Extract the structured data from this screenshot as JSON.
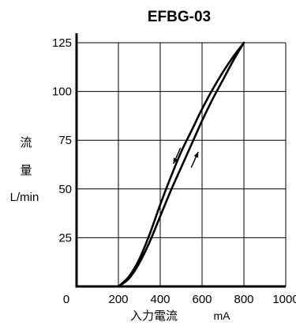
{
  "chart_data": {
    "type": "line",
    "title": "EFBG-03",
    "xlabel": "入力電流",
    "xunit": "mA",
    "ylabel_chars": [
      "流",
      "量"
    ],
    "yunit": "L/min",
    "xlim": [
      0,
      1000
    ],
    "ylim": [
      0,
      125
    ],
    "x_ticks": [
      0,
      200,
      400,
      600,
      800,
      1000
    ],
    "y_ticks": [
      25,
      50,
      75,
      100,
      125
    ],
    "grid": true,
    "series": [
      {
        "direction": "increasing",
        "points": [
          [
            200,
            0
          ],
          [
            250,
            4
          ],
          [
            300,
            12
          ],
          [
            350,
            23
          ],
          [
            400,
            36
          ],
          [
            450,
            49
          ],
          [
            500,
            61
          ],
          [
            550,
            73
          ],
          [
            600,
            85
          ],
          [
            650,
            96
          ],
          [
            700,
            106
          ],
          [
            750,
            116
          ],
          [
            800,
            125
          ]
        ]
      },
      {
        "direction": "decreasing",
        "points": [
          [
            800,
            125
          ],
          [
            750,
            118
          ],
          [
            700,
            110
          ],
          [
            650,
            101
          ],
          [
            600,
            91
          ],
          [
            550,
            80
          ],
          [
            500,
            69
          ],
          [
            450,
            56
          ],
          [
            400,
            42
          ],
          [
            350,
            27
          ],
          [
            300,
            14
          ],
          [
            250,
            5
          ],
          [
            200,
            0
          ]
        ]
      }
    ],
    "arrows": [
      {
        "at": [
          480,
          67
        ],
        "direction": "down"
      },
      {
        "at": [
          565,
          65
        ],
        "direction": "up"
      }
    ]
  }
}
